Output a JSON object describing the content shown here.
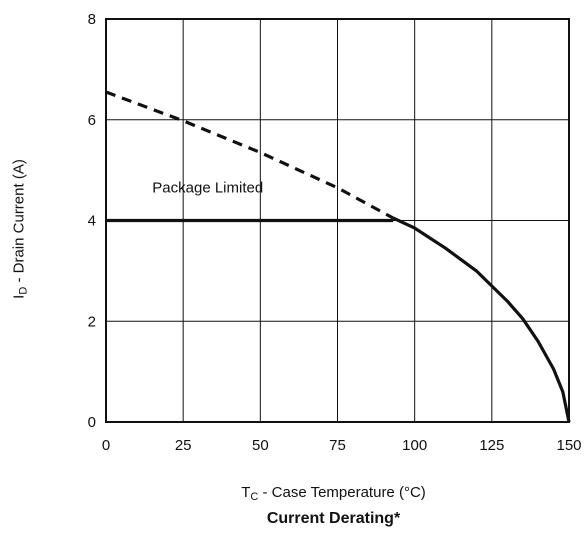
{
  "chart_data": {
    "type": "line",
    "title": "Current Derating*",
    "xlabel": {
      "main": "T",
      "sub": "C",
      "rest": " - Case Temperature (°C)"
    },
    "ylabel": {
      "main": "I",
      "sub": "D",
      "rest": " -  Drain Current (A)"
    },
    "xlim": [
      0,
      150
    ],
    "ylim": [
      0,
      8
    ],
    "x_ticks": [
      0,
      25,
      50,
      75,
      100,
      125,
      150
    ],
    "y_ticks": [
      0,
      2,
      4,
      6,
      8
    ],
    "grid": true,
    "annotations": [
      {
        "text": "Package Limited",
        "x": 15,
        "y": 4.5
      }
    ],
    "series": [
      {
        "style": "dashed",
        "points": [
          [
            0,
            6.55
          ],
          [
            25,
            5.98
          ],
          [
            50,
            5.35
          ],
          [
            75,
            4.65
          ],
          [
            93,
            4.05
          ]
        ]
      },
      {
        "style": "solid",
        "points": [
          [
            0,
            4.0
          ],
          [
            93,
            4.0
          ]
        ]
      },
      {
        "style": "solid",
        "points": [
          [
            93,
            4.05
          ],
          [
            100,
            3.85
          ],
          [
            110,
            3.45
          ],
          [
            120,
            3.0
          ],
          [
            125,
            2.7
          ],
          [
            130,
            2.4
          ],
          [
            135,
            2.05
          ],
          [
            140,
            1.6
          ],
          [
            145,
            1.05
          ],
          [
            148,
            0.6
          ],
          [
            150,
            0.0
          ]
        ]
      }
    ]
  }
}
